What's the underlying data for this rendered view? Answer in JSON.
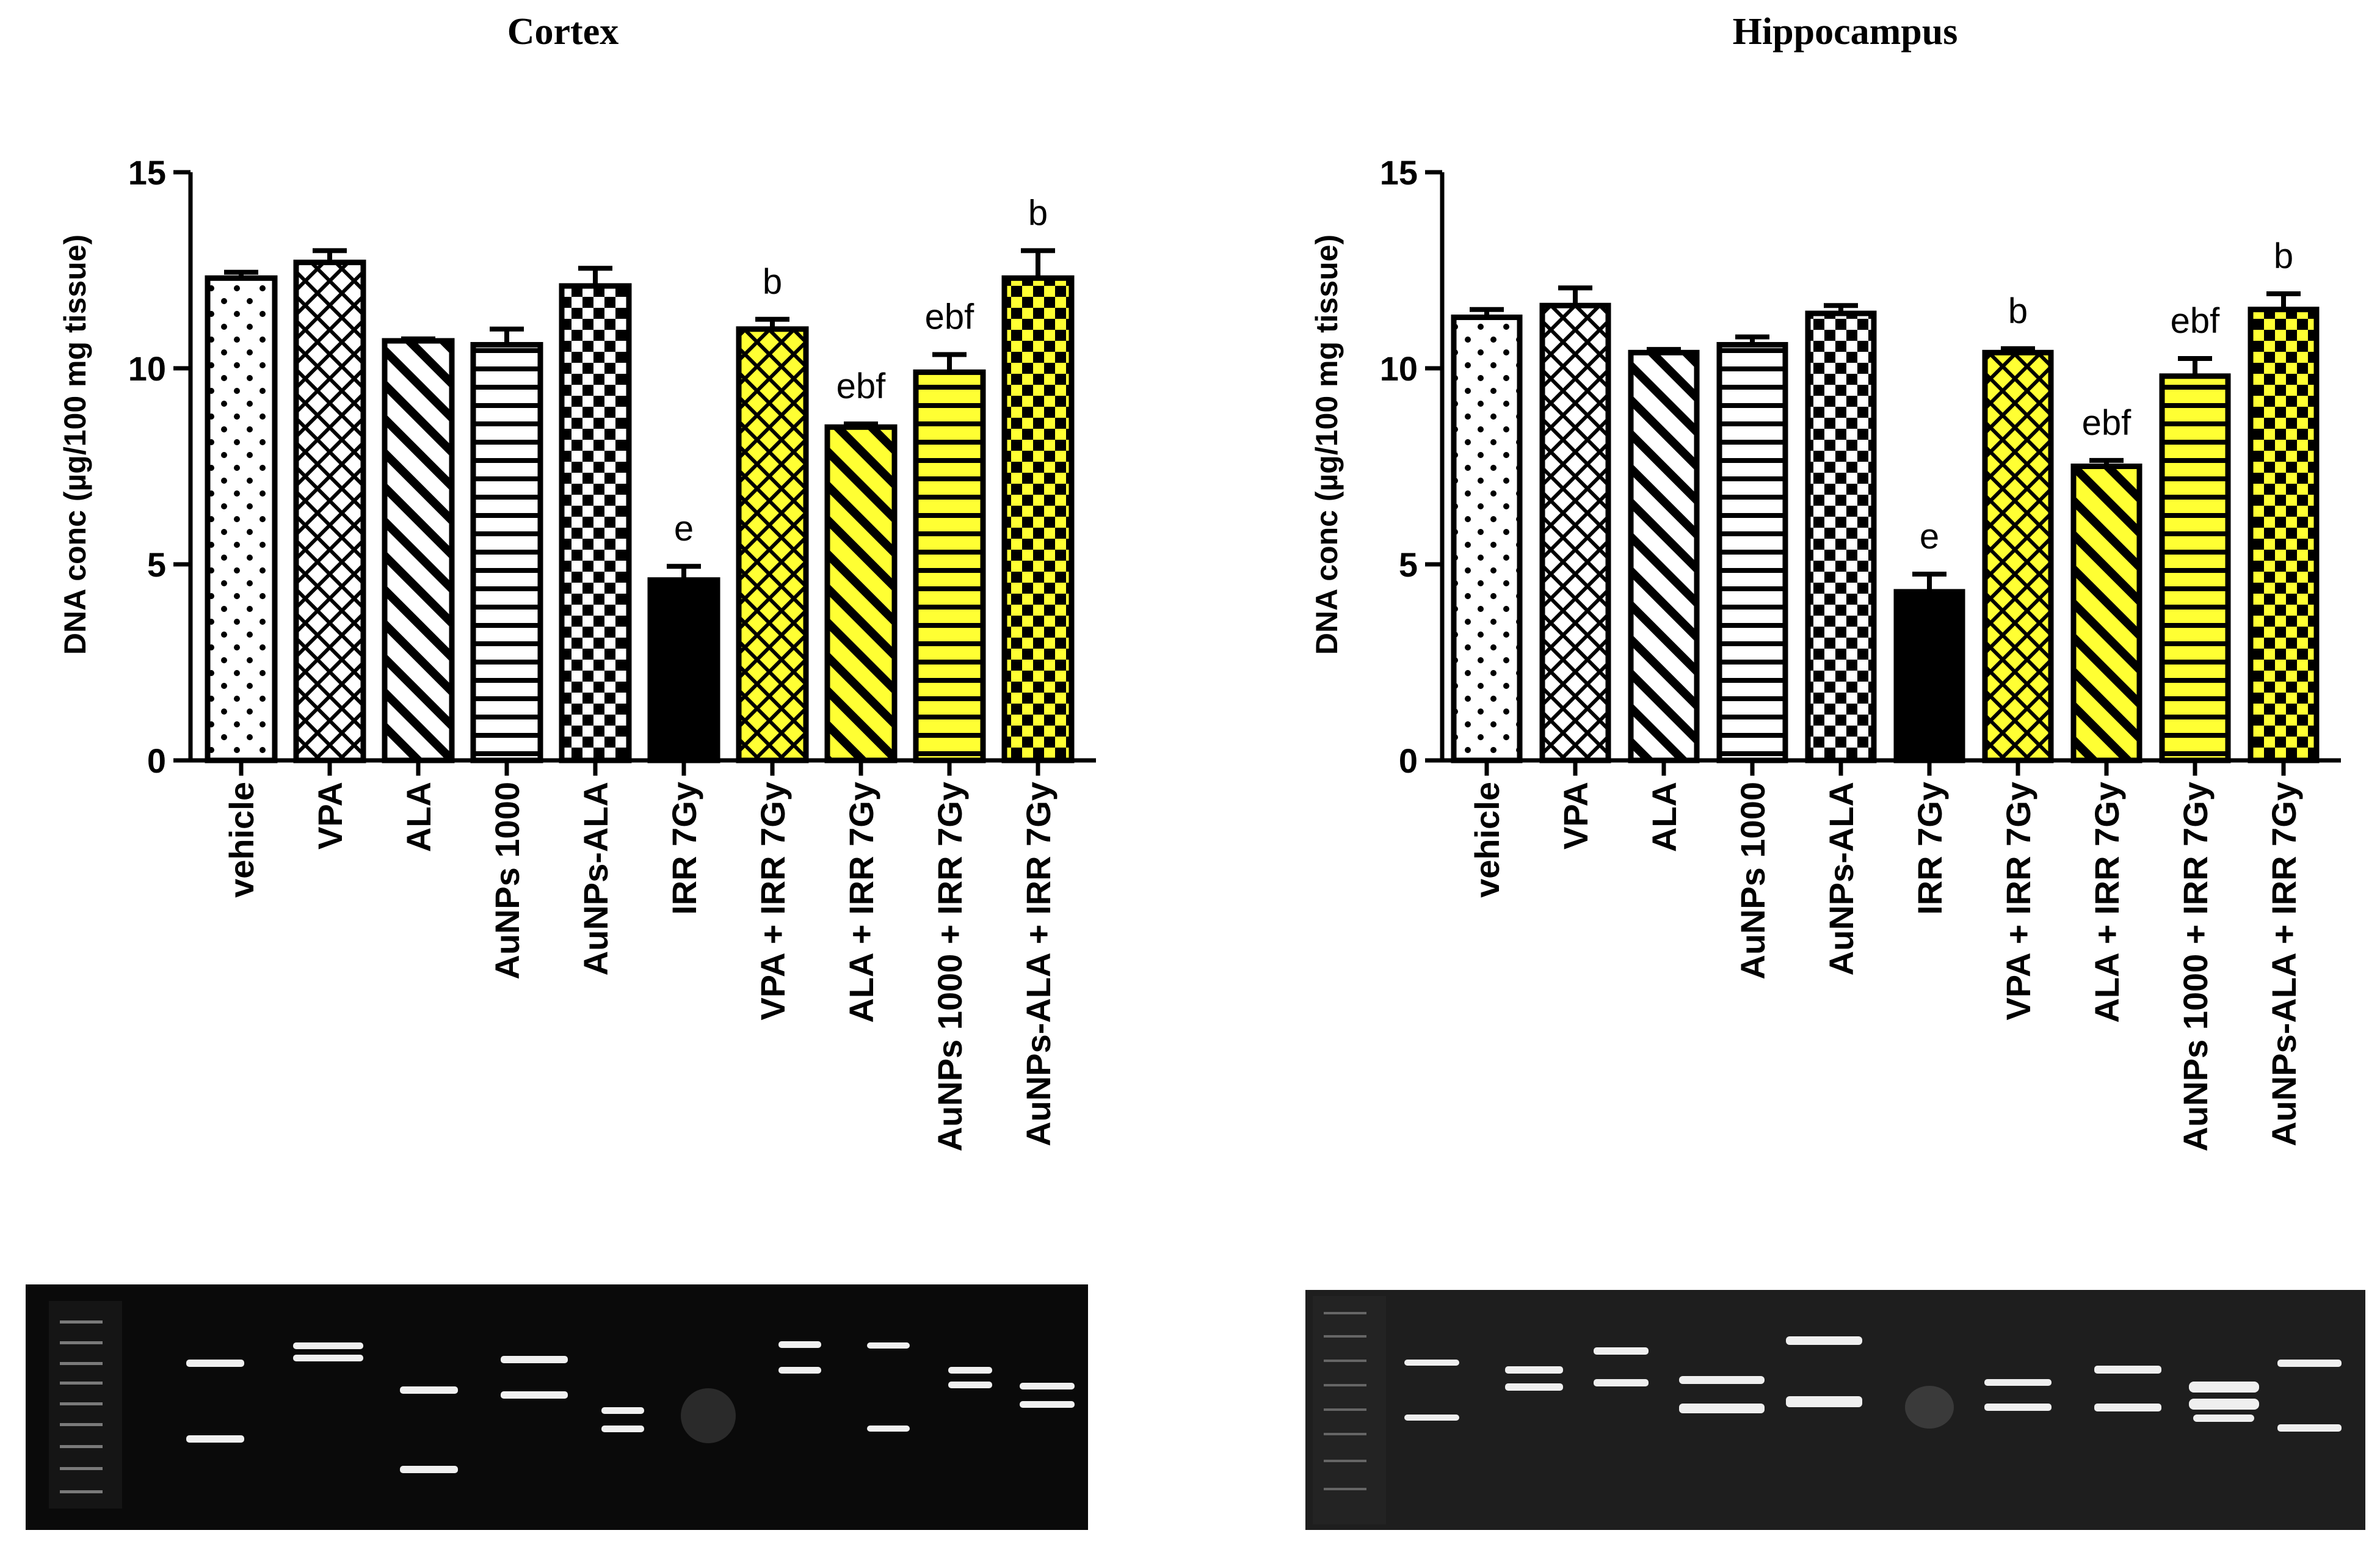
{
  "figure": {
    "panels": [
      {
        "id": "cortex",
        "title": "Cortex"
      },
      {
        "id": "hippocampus",
        "title": "Hippocampus"
      }
    ]
  },
  "chart_data": [
    {
      "type": "bar",
      "title": "Cortex",
      "xlabel": "",
      "ylabel": "DNA conc (µg/100 mg tissue)",
      "ylim": [
        0,
        15
      ],
      "yticks": [
        0,
        5,
        10,
        15
      ],
      "categories": [
        "vehicle",
        "VPA",
        "ALA",
        "AuNPs 1000",
        "AuNPs-ALA",
        "IRR 7Gy",
        "VPA + IRR 7Gy",
        "ALA + IRR 7Gy",
        "AuNPs 1000 + IRR 7Gy",
        "AuNPs-ALA + IRR 7Gy"
      ],
      "values": [
        12.3,
        12.7,
        10.7,
        10.6,
        12.1,
        4.6,
        11.0,
        8.5,
        9.9,
        12.3
      ],
      "errors": [
        0.15,
        0.3,
        0.05,
        0.4,
        0.45,
        0.35,
        0.25,
        0.08,
        0.45,
        0.7
      ],
      "patterns": [
        "dots",
        "crosshatch",
        "diag-back",
        "horizontal",
        "checker",
        "solid",
        "crosshatch",
        "diag-back",
        "horizontal",
        "checker"
      ],
      "fills": [
        "#ffffff",
        "#ffffff",
        "#ffffff",
        "#ffffff",
        "#ffffff",
        "#000000",
        "#ffff33",
        "#ffff33",
        "#ffff33",
        "#ffff33"
      ],
      "annotations": [
        "",
        "",
        "",
        "",
        "",
        "e",
        "b",
        "ebf",
        "ebf",
        "b"
      ]
    },
    {
      "type": "bar",
      "title": "Hippocampus",
      "xlabel": "",
      "ylabel": "DNA conc (µg/100 mg tissue)",
      "ylim": [
        0,
        15
      ],
      "yticks": [
        0,
        5,
        10,
        15
      ],
      "categories": [
        "vehicle",
        "VPA",
        "ALA",
        "AuNPs 1000",
        "AuNPs-ALA",
        "IRR 7Gy",
        "VPA + IRR 7Gy",
        "ALA + IRR 7Gy",
        "AuNPs 1000 + IRR 7Gy",
        "AuNPs-ALA + IRR 7Gy"
      ],
      "values": [
        11.3,
        11.6,
        10.4,
        10.6,
        11.4,
        4.3,
        10.4,
        7.5,
        9.8,
        11.5
      ],
      "errors": [
        0.2,
        0.45,
        0.08,
        0.2,
        0.2,
        0.45,
        0.1,
        0.15,
        0.45,
        0.4
      ],
      "patterns": [
        "dots",
        "crosshatch",
        "diag-back",
        "horizontal",
        "checker",
        "solid",
        "crosshatch",
        "diag-back",
        "horizontal",
        "checker"
      ],
      "fills": [
        "#ffffff",
        "#ffffff",
        "#ffffff",
        "#ffffff",
        "#ffffff",
        "#000000",
        "#ffff33",
        "#ffff33",
        "#ffff33",
        "#ffff33"
      ],
      "annotations": [
        "",
        "",
        "",
        "",
        "",
        "e",
        "b",
        "ebf",
        "ebf",
        "b"
      ]
    }
  ]
}
